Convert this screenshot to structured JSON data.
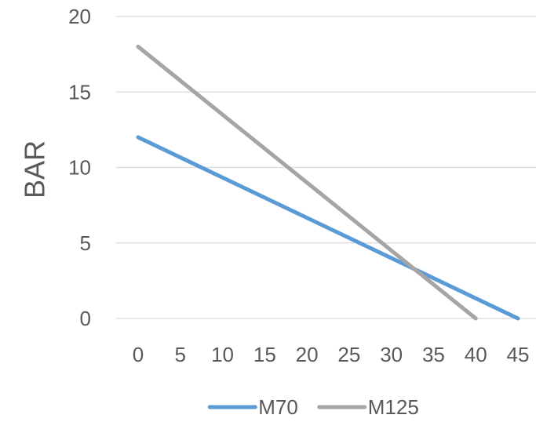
{
  "chart_data": {
    "type": "line",
    "title": "",
    "xlabel": "",
    "ylabel": "BAR",
    "x_ticks": [
      "0",
      "5",
      "10",
      "15",
      "20",
      "25",
      "30",
      "35",
      "40",
      "45"
    ],
    "y_ticks": [
      "0",
      "5",
      "10",
      "15",
      "20"
    ],
    "xlim": [
      0,
      45
    ],
    "ylim": [
      0,
      20
    ],
    "grid": "horizontal",
    "legend_position": "bottom",
    "series": [
      {
        "name": "M70",
        "color": "#5B9BD5",
        "x": [
          0,
          45
        ],
        "y": [
          12,
          0
        ]
      },
      {
        "name": "M125",
        "color": "#A5A5A5",
        "x": [
          0,
          40
        ],
        "y": [
          18,
          0
        ]
      }
    ]
  }
}
